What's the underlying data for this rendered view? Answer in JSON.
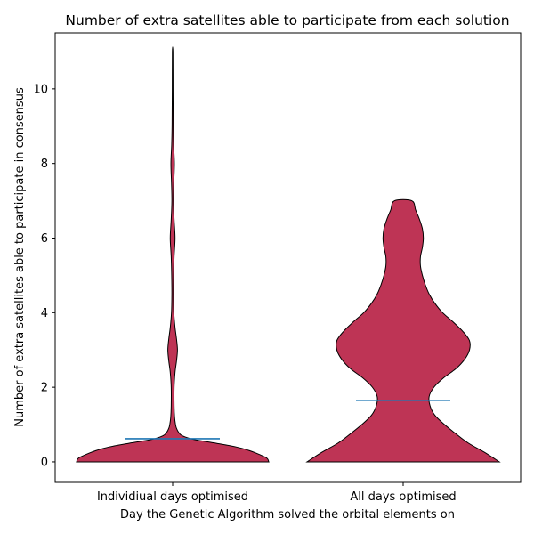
{
  "chart_data": {
    "type": "violin",
    "title": "Number of extra satellites able to participate from each solution",
    "xlabel": "Day the Genetic Algorithm solved the orbital elements on",
    "ylabel": "Number of extra satellites able to participate in consensus",
    "categories": [
      "Individiual days optimised",
      "All days optimised"
    ],
    "ylim": [
      -0.55,
      11.5
    ],
    "yticks": [
      0,
      2,
      4,
      6,
      8,
      10
    ],
    "grid": false,
    "colors": {
      "fill": "#be3455",
      "edge": "#000000",
      "mean_line": "#1f77b4"
    },
    "series": [
      {
        "category": "Individiual days optimised",
        "mean": 0.62,
        "min": 0,
        "max": 11,
        "density": [
          [
            0.0,
            1.0
          ],
          [
            0.1,
            0.98
          ],
          [
            0.2,
            0.9
          ],
          [
            0.3,
            0.8
          ],
          [
            0.4,
            0.66
          ],
          [
            0.5,
            0.45
          ],
          [
            0.6,
            0.22
          ],
          [
            0.7,
            0.1
          ],
          [
            0.8,
            0.06
          ],
          [
            0.9,
            0.04
          ],
          [
            1.0,
            0.03
          ],
          [
            1.2,
            0.02
          ],
          [
            1.5,
            0.015
          ],
          [
            2.0,
            0.015
          ],
          [
            2.4,
            0.025
          ],
          [
            2.7,
            0.04
          ],
          [
            3.0,
            0.05
          ],
          [
            3.3,
            0.04
          ],
          [
            3.6,
            0.025
          ],
          [
            4.0,
            0.012
          ],
          [
            4.5,
            0.008
          ],
          [
            5.0,
            0.01
          ],
          [
            5.5,
            0.015
          ],
          [
            6.0,
            0.025
          ],
          [
            6.5,
            0.015
          ],
          [
            7.0,
            0.008
          ],
          [
            7.5,
            0.012
          ],
          [
            8.0,
            0.018
          ],
          [
            8.5,
            0.01
          ],
          [
            9.0,
            0.006
          ],
          [
            10.0,
            0.004
          ],
          [
            11.0,
            0.003
          ]
        ]
      },
      {
        "category": "All days optimised",
        "mean": 1.64,
        "min": 0,
        "max": 7,
        "density": [
          [
            0.0,
            1.0
          ],
          [
            0.25,
            0.85
          ],
          [
            0.5,
            0.68
          ],
          [
            0.75,
            0.55
          ],
          [
            1.0,
            0.43
          ],
          [
            1.25,
            0.33
          ],
          [
            1.5,
            0.28
          ],
          [
            1.75,
            0.27
          ],
          [
            2.0,
            0.32
          ],
          [
            2.25,
            0.42
          ],
          [
            2.5,
            0.55
          ],
          [
            2.75,
            0.64
          ],
          [
            3.0,
            0.69
          ],
          [
            3.25,
            0.69
          ],
          [
            3.5,
            0.62
          ],
          [
            3.75,
            0.52
          ],
          [
            4.0,
            0.41
          ],
          [
            4.25,
            0.33
          ],
          [
            4.5,
            0.27
          ],
          [
            4.75,
            0.23
          ],
          [
            5.0,
            0.2
          ],
          [
            5.25,
            0.18
          ],
          [
            5.5,
            0.18
          ],
          [
            5.75,
            0.2
          ],
          [
            6.0,
            0.21
          ],
          [
            6.25,
            0.2
          ],
          [
            6.5,
            0.17
          ],
          [
            6.75,
            0.13
          ],
          [
            7.0,
            0.09
          ]
        ]
      }
    ]
  }
}
